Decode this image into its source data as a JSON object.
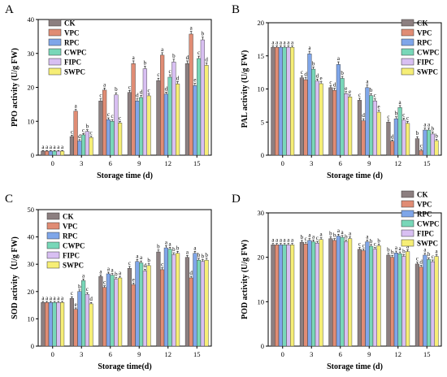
{
  "figure": {
    "panel_letters": [
      "A",
      "B",
      "C",
      "D"
    ]
  },
  "legend": {
    "items": [
      "CK",
      "VPC",
      "RPC",
      "CWPC",
      "FIPC",
      "SWPC"
    ],
    "colors": [
      "#8c7f80",
      "#e08c74",
      "#7fa6e9",
      "#78d7b8",
      "#d8bff2",
      "#f6ee76"
    ]
  },
  "chart_data": [
    {
      "panel": "A",
      "type": "bar",
      "xlabel": "Storage time (d)",
      "ylabel": "PPO activity (U/g FW)",
      "ylim": [
        0,
        40
      ],
      "yticks": [
        0,
        10,
        20,
        30,
        40
      ],
      "categories": [
        "0",
        "3",
        "6",
        "9",
        "12",
        "15"
      ],
      "series": [
        {
          "name": "CK",
          "values": [
            1.2,
            5.5,
            16.0,
            18.5,
            22.0,
            27.0
          ],
          "errors": [
            0.2,
            0.4,
            0.6,
            0.6,
            0.7,
            0.8
          ],
          "letters": [
            "a",
            "c",
            "c",
            "c",
            "c",
            "d"
          ]
        },
        {
          "name": "VPC",
          "values": [
            1.2,
            13.0,
            19.2,
            27.0,
            29.5,
            35.7
          ],
          "errors": [
            0.2,
            0.5,
            0.6,
            0.8,
            0.7,
            0.8
          ],
          "letters": [
            "a",
            "a",
            "a",
            "a",
            "a",
            "a"
          ]
        },
        {
          "name": "RPC",
          "values": [
            1.2,
            4.2,
            10.5,
            16.0,
            18.0,
            20.5
          ],
          "errors": [
            0.2,
            0.4,
            0.5,
            0.6,
            0.6,
            0.7
          ],
          "letters": [
            "a",
            "d",
            "c",
            "d",
            "d",
            "e"
          ]
        },
        {
          "name": "CWPC",
          "values": [
            1.2,
            6.0,
            10.0,
            17.0,
            23.0,
            28.5
          ],
          "errors": [
            0.2,
            0.4,
            0.5,
            0.6,
            0.7,
            0.7
          ],
          "letters": [
            "a",
            "c",
            "c",
            "d",
            "c",
            "c"
          ]
        },
        {
          "name": "FIPC",
          "values": [
            1.2,
            7.0,
            17.8,
            25.5,
            27.5,
            34.0
          ],
          "errors": [
            0.2,
            0.5,
            0.6,
            0.7,
            0.8,
            0.8
          ],
          "letters": [
            "a",
            "b",
            "b",
            "b",
            "b",
            "b"
          ]
        },
        {
          "name": "SWPC",
          "values": [
            1.2,
            5.2,
            9.5,
            17.5,
            21.0,
            26.5
          ],
          "errors": [
            0.2,
            0.4,
            0.5,
            0.6,
            0.7,
            0.7
          ],
          "letters": [
            "a",
            "c",
            "c",
            "c",
            "d",
            "d"
          ]
        }
      ]
    },
    {
      "panel": "B",
      "type": "bar",
      "xlabel": "Storage time (d)",
      "ylabel": "PAL activity (U/g FW)",
      "ylim": [
        0,
        20
      ],
      "yticks": [
        0,
        5,
        10,
        15,
        20
      ],
      "categories": [
        "0",
        "3",
        "6",
        "9",
        "12",
        "15"
      ],
      "series": [
        {
          "name": "CK",
          "values": [
            16.3,
            11.7,
            10.2,
            8.3,
            5.0,
            2.5
          ],
          "errors": [
            0.2,
            0.3,
            0.3,
            0.3,
            0.3,
            0.3
          ],
          "letters": [
            "a",
            "c",
            "c",
            "c",
            "c",
            "b"
          ]
        },
        {
          "name": "VPC",
          "values": [
            16.3,
            11.4,
            9.8,
            5.2,
            2.1,
            0.7
          ],
          "errors": [
            0.2,
            0.3,
            0.3,
            0.3,
            0.2,
            0.2
          ],
          "letters": [
            "a",
            "d",
            "d",
            "d",
            "d",
            "c"
          ]
        },
        {
          "name": "RPC",
          "values": [
            16.3,
            15.3,
            13.7,
            10.2,
            5.5,
            3.8
          ],
          "errors": [
            0.2,
            0.4,
            0.4,
            0.4,
            0.3,
            0.3
          ],
          "letters": [
            "a",
            "a",
            "a",
            "a",
            "b",
            "a"
          ]
        },
        {
          "name": "CWPC",
          "values": [
            16.3,
            13.0,
            11.6,
            9.0,
            7.2,
            3.8
          ],
          "errors": [
            0.2,
            0.3,
            0.3,
            0.3,
            0.3,
            0.3
          ],
          "letters": [
            "a",
            "b",
            "b",
            "b",
            "a",
            "a"
          ]
        },
        {
          "name": "FIPC",
          "values": [
            16.3,
            11.2,
            9.3,
            8.2,
            5.3,
            3.2
          ],
          "errors": [
            0.2,
            0.3,
            0.3,
            0.3,
            0.3,
            0.3
          ],
          "letters": [
            "a",
            "d",
            "e",
            "c",
            "c",
            "b"
          ]
        },
        {
          "name": "SWPC",
          "values": [
            16.3,
            10.8,
            8.8,
            6.5,
            4.8,
            2.2
          ],
          "errors": [
            0.2,
            0.3,
            0.3,
            0.3,
            0.3,
            0.2
          ],
          "letters": [
            "a",
            "e",
            "e",
            "e",
            "c",
            "b"
          ]
        }
      ]
    },
    {
      "panel": "C",
      "type": "bar",
      "xlabel": "Storage time(d)",
      "ylabel": "SOD activity（U/g FW)",
      "ylim": [
        0,
        50
      ],
      "yticks": [
        0,
        10,
        20,
        30,
        40,
        50
      ],
      "categories": [
        "0",
        "3",
        "6",
        "9",
        "12",
        "15"
      ],
      "series": [
        {
          "name": "CK",
          "values": [
            16.0,
            17.5,
            25.5,
            28.5,
            34.5,
            32.5
          ],
          "errors": [
            0.4,
            0.6,
            0.6,
            0.7,
            0.7,
            0.7
          ],
          "letters": [
            "a",
            "c",
            "a",
            "c",
            "b",
            "a"
          ]
        },
        {
          "name": "VPC",
          "values": [
            16.0,
            13.5,
            21.5,
            22.5,
            28.0,
            25.0
          ],
          "errors": [
            0.4,
            0.5,
            0.6,
            0.6,
            0.7,
            0.6
          ],
          "letters": [
            "a",
            "e",
            "c",
            "e",
            "c",
            "d"
          ]
        },
        {
          "name": "RPC",
          "values": [
            16.0,
            20.0,
            26.5,
            31.0,
            36.0,
            34.0
          ],
          "errors": [
            0.4,
            0.6,
            0.6,
            0.7,
            0.8,
            0.7
          ],
          "letters": [
            "a",
            "b",
            "a",
            "a",
            "a",
            "a"
          ]
        },
        {
          "name": "CWPC",
          "values": [
            16.0,
            24.0,
            26.0,
            30.5,
            35.5,
            31.5
          ],
          "errors": [
            0.4,
            0.6,
            0.6,
            0.7,
            0.7,
            0.7
          ],
          "letters": [
            "a",
            "a",
            "a",
            "a",
            "a",
            "b"
          ]
        },
        {
          "name": "FIPC",
          "values": [
            16.0,
            19.0,
            24.5,
            27.5,
            33.5,
            31.0
          ],
          "errors": [
            0.4,
            0.6,
            0.6,
            0.7,
            0.7,
            0.7
          ],
          "letters": [
            "a",
            "c",
            "b",
            "d",
            "b",
            "b"
          ]
        },
        {
          "name": "SWPC",
          "values": [
            16.0,
            15.5,
            25.0,
            29.5,
            34.0,
            31.5
          ],
          "errors": [
            0.4,
            0.5,
            0.6,
            0.7,
            0.7,
            0.7
          ],
          "letters": [
            "a",
            "d",
            "a",
            "b",
            "b",
            "b"
          ]
        }
      ]
    },
    {
      "panel": "D",
      "type": "bar",
      "xlabel": "Storage time (d)",
      "ylabel": "POD activity (U/g FW)",
      "ylim": [
        0,
        30
      ],
      "yticks": [
        0,
        10,
        20,
        30
      ],
      "categories": [
        "0",
        "3",
        "6",
        "9",
        "12",
        "15"
      ],
      "series": [
        {
          "name": "CK",
          "values": [
            22.8,
            23.4,
            24.2,
            21.8,
            20.5,
            18.5
          ],
          "errors": [
            0.3,
            0.4,
            0.4,
            0.4,
            0.4,
            0.4
          ],
          "letters": [
            "a",
            "b",
            "b",
            "c",
            "b",
            "c"
          ]
        },
        {
          "name": "VPC",
          "values": [
            22.8,
            23.0,
            23.8,
            21.5,
            20.0,
            17.8
          ],
          "errors": [
            0.3,
            0.4,
            0.4,
            0.4,
            0.4,
            0.4
          ],
          "letters": [
            "a",
            "c",
            "b",
            "c",
            "b",
            "d"
          ]
        },
        {
          "name": "RPC",
          "values": [
            22.8,
            23.8,
            24.8,
            23.5,
            21.0,
            20.5
          ],
          "errors": [
            0.3,
            0.4,
            0.4,
            0.4,
            0.4,
            0.4
          ],
          "letters": [
            "a",
            "a",
            "a",
            "a",
            "a",
            "a"
          ]
        },
        {
          "name": "CWPC",
          "values": [
            22.8,
            23.5,
            24.5,
            22.5,
            20.8,
            19.5
          ],
          "errors": [
            0.3,
            0.4,
            0.4,
            0.4,
            0.4,
            0.4
          ],
          "letters": [
            "a",
            "a",
            "a",
            "b",
            "a",
            "b"
          ]
        },
        {
          "name": "FIPC",
          "values": [
            22.8,
            23.2,
            23.5,
            21.8,
            20.2,
            19.0
          ],
          "errors": [
            0.3,
            0.4,
            0.4,
            0.4,
            0.4,
            0.4
          ],
          "letters": [
            "a",
            "c",
            "b",
            "c",
            "b",
            "c"
          ]
        },
        {
          "name": "SWPC",
          "values": [
            22.8,
            24.0,
            24.2,
            22.6,
            21.3,
            20.2
          ],
          "errors": [
            0.3,
            0.4,
            0.4,
            0.4,
            0.4,
            0.4
          ],
          "letters": [
            "a",
            "a",
            "a",
            "b",
            "a",
            "a"
          ]
        }
      ]
    }
  ]
}
